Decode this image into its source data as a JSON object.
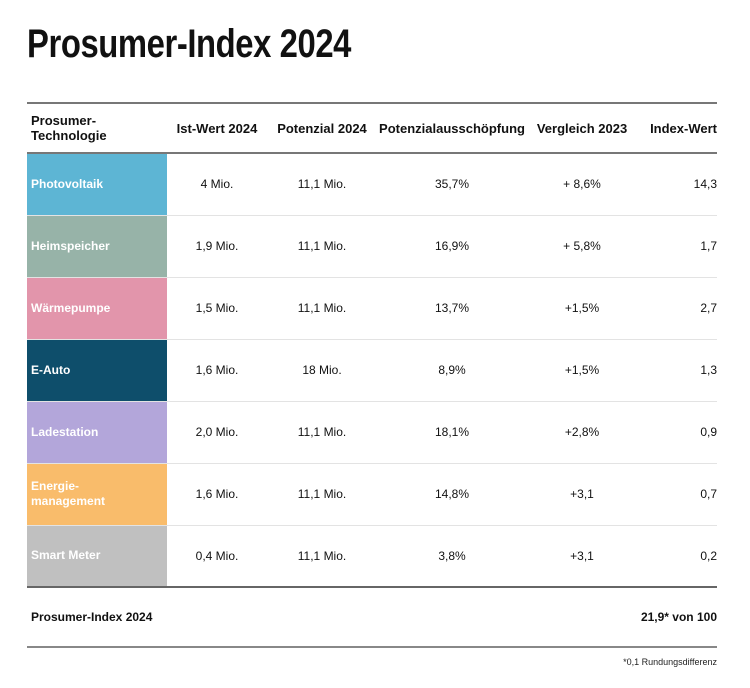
{
  "title": "Prosumer-Index 2024",
  "chart_data": {
    "type": "table",
    "title": "Prosumer-Index 2024",
    "columns": [
      "Prosumer-Technologie",
      "Ist-Wert 2024",
      "Potenzial 2024",
      "Potenzialausschöpfung",
      "Vergleich 2023",
      "Index-Wert"
    ],
    "rows": [
      {
        "tech": "Photovoltaik",
        "color": "#5db5d4",
        "ist": "4 Mio.",
        "potenzial": "11,1 Mio.",
        "ausschoepfung": "35,7%",
        "vergleich": "+ 8,6%",
        "index": "14,3"
      },
      {
        "tech": "Heimspeicher",
        "color": "#97b3a8",
        "ist": "1,9 Mio.",
        "potenzial": "11,1 Mio.",
        "ausschoepfung": "16,9%",
        "vergleich": "+ 5,8%",
        "index": "1,7"
      },
      {
        "tech": "Wärmepumpe",
        "color": "#e295ab",
        "ist": "1,5 Mio.",
        "potenzial": "11,1 Mio.",
        "ausschoepfung": "13,7%",
        "vergleich": "+1,5%",
        "index": "2,7"
      },
      {
        "tech": "E-Auto",
        "color": "#0e4e6b",
        "ist": "1,6 Mio.",
        "potenzial": "18 Mio.",
        "ausschoepfung": "8,9%",
        "vergleich": "+1,5%",
        "index": "1,3"
      },
      {
        "tech": "Ladestation",
        "color": "#b3a6da",
        "ist": "2,0 Mio.",
        "potenzial": "11,1 Mio.",
        "ausschoepfung": "18,1%",
        "vergleich": "+2,8%",
        "index": "0,9"
      },
      {
        "tech": "Energie-\nmanagement",
        "color": "#f9bc6b",
        "ist": "1,6 Mio.",
        "potenzial": "11,1 Mio.",
        "ausschoepfung": "14,8%",
        "vergleich": "+3,1",
        "index": "0,7"
      },
      {
        "tech": "Smart Meter",
        "color": "#c0c0c0",
        "ist": "0,4 Mio.",
        "potenzial": "11,1 Mio.",
        "ausschoepfung": "3,8%",
        "vergleich": "+3,1",
        "index": "0,2"
      }
    ],
    "summary": {
      "label": "Prosumer-Index 2024",
      "value": "21,9* von 100"
    },
    "footnote": "*0,1 Rundungsdifferenz"
  }
}
